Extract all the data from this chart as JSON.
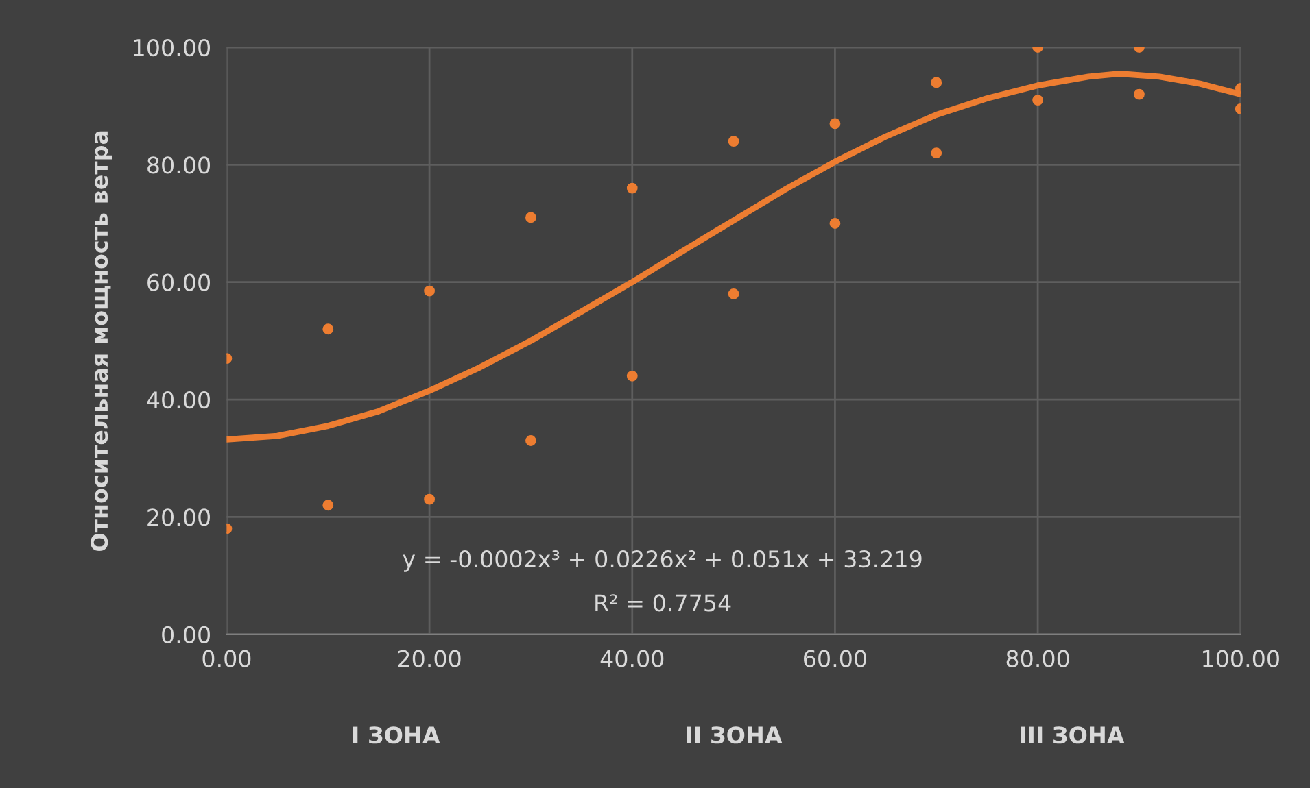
{
  "chart_data": {
    "type": "scatter",
    "ylabel": "Относительная мощность ветра",
    "xlim": [
      0,
      100
    ],
    "xticks": [
      {
        "value": 0,
        "label": "0.00"
      },
      {
        "value": 20,
        "label": "20.00"
      },
      {
        "value": 40,
        "label": "40.00"
      },
      {
        "value": 60,
        "label": "60.00"
      },
      {
        "value": 80,
        "label": "80.00"
      },
      {
        "value": 100,
        "label": "100.00"
      }
    ],
    "ylim": [
      0,
      100
    ],
    "yticks": [
      {
        "value": 0,
        "label": "0.00"
      },
      {
        "value": 20,
        "label": "20.00"
      },
      {
        "value": 40,
        "label": "40.00"
      },
      {
        "value": 60,
        "label": "60.00"
      },
      {
        "value": 80,
        "label": "80.00"
      },
      {
        "value": 100,
        "label": "100.00"
      }
    ],
    "grid": true,
    "legend": false,
    "series": [
      {
        "marker": "circle",
        "color": "#ed7d31",
        "x": [
          0,
          0,
          10,
          10,
          20,
          20,
          30,
          30,
          40,
          40,
          50,
          50,
          60,
          60,
          70,
          70,
          80,
          80,
          90,
          90,
          100,
          100
        ],
        "values": [
          47,
          18,
          52,
          22,
          58.5,
          23,
          71,
          33,
          76,
          44,
          84,
          58,
          87,
          70,
          94,
          82,
          100,
          91,
          100,
          92,
          93,
          89.5
        ]
      },
      {
        "type": "line",
        "color": "#ed7d31",
        "x": [
          0,
          5,
          10,
          15,
          20,
          25,
          30,
          35,
          40,
          45,
          50,
          55,
          60,
          65,
          70,
          75,
          80,
          85,
          88,
          92,
          96,
          100
        ],
        "values": [
          33.2,
          33.8,
          35.5,
          38,
          41.5,
          45.5,
          50,
          55,
          60,
          65.3,
          70.5,
          75.7,
          80.5,
          84.8,
          88.5,
          91.3,
          93.5,
          95,
          95.5,
          95,
          93.8,
          92
        ]
      }
    ],
    "annotations": [
      "I ЗОНА",
      "II ЗОНА",
      "III ЗОНА",
      "y = -0.0002x³ + 0.0226x² + 0.051x + 33.219",
      "R² = 0.7754"
    ]
  }
}
